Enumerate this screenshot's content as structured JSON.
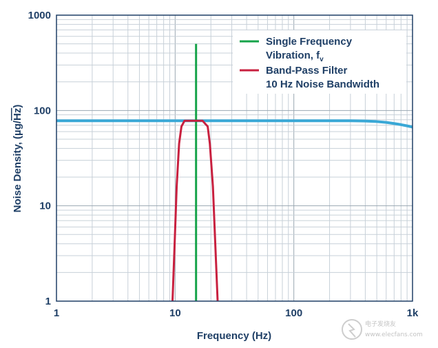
{
  "chart_data": {
    "type": "line",
    "scale": {
      "x": "log",
      "y": "log"
    },
    "xlim": [
      1,
      1000
    ],
    "ylim": [
      1,
      1000
    ],
    "xlabel": "Frequency (Hz)",
    "ylabel_prefix": "Noise Density, (µg/",
    "ylabel_sqrt": "Hz",
    "ylabel_suffix": ")",
    "x_ticks": [
      {
        "value": 1,
        "label": "1"
      },
      {
        "value": 10,
        "label": "10"
      },
      {
        "value": 100,
        "label": "100"
      },
      {
        "value": 1000,
        "label": "1k"
      }
    ],
    "y_ticks": [
      {
        "value": 1,
        "label": "1"
      },
      {
        "value": 10,
        "label": "10"
      },
      {
        "value": 100,
        "label": "100"
      },
      {
        "value": 1000,
        "label": "1000"
      }
    ],
    "grid": true,
    "legend": {
      "position": "top-right",
      "entries": [
        {
          "series": "single-frequency-vibration",
          "label_line1": "Single Frequency",
          "label_line2_main": "Vibration, f",
          "label_line2_sub": "v"
        },
        {
          "series": "band-pass-filter",
          "label_line1": "Band-Pass Filter",
          "label_line2_main": "10 Hz Noise Bandwidth",
          "label_line2_sub": ""
        }
      ]
    },
    "series": [
      {
        "name": "Noise Density",
        "id": "noise-density",
        "color": "#3aa8d6",
        "x": [
          1,
          100,
          300,
          400,
          500,
          600,
          700,
          800,
          900,
          1000
        ],
        "y": [
          78,
          78,
          78,
          77.5,
          76.5,
          75,
          73,
          71,
          69,
          67
        ]
      },
      {
        "name": "Single Frequency Vibration, fv",
        "id": "single-frequency-vibration",
        "color": "#16a34a",
        "x": [
          15,
          15
        ],
        "y": [
          1,
          500
        ]
      },
      {
        "name": "Band-Pass Filter",
        "id": "band-pass-filter",
        "color": "#c8203f",
        "x": [
          9.5,
          9.9,
          10.3,
          10.8,
          11.3,
          12,
          14,
          17,
          18.8,
          19.6,
          20.8,
          22.8
        ],
        "y": [
          1,
          4,
          16,
          45,
          68,
          78,
          78,
          78,
          68,
          45,
          16,
          1
        ]
      }
    ]
  },
  "watermark": {
    "text1": "电子发烧友",
    "text2": "www.elecfans.com"
  }
}
